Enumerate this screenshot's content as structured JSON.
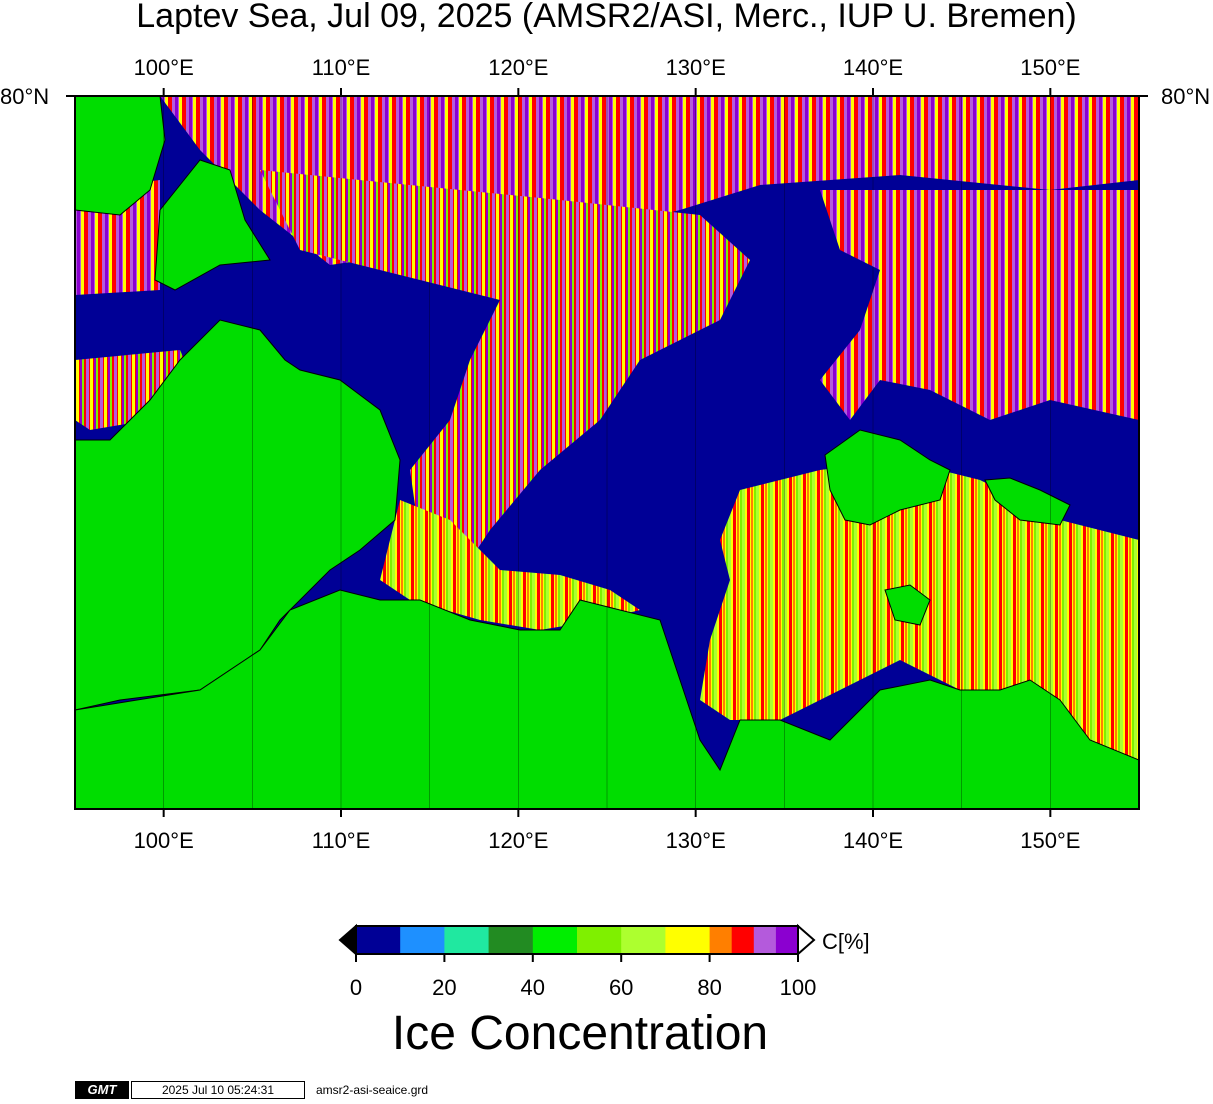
{
  "title": "Laptev Sea, Jul 09, 2025 (AMSR2/ASI, Merc., IUP U. Bremen)",
  "map": {
    "projection": "Mercator",
    "lon_range": [
      95,
      155
    ],
    "lat_top_label": "80°N",
    "lon_ticks": [
      "100°E",
      "110°E",
      "120°E",
      "130°E",
      "140°E",
      "150°E"
    ],
    "lon_tick_values": [
      100,
      110,
      120,
      130,
      140,
      150
    ],
    "land_color": "#00dd00",
    "open_water_color": "#000096"
  },
  "colorbar": {
    "label": "Ice Concentration",
    "unit": "C[%]",
    "tick_labels": [
      "0",
      "20",
      "40",
      "60",
      "80",
      "100"
    ],
    "bins": [
      {
        "from": 0,
        "to": 10,
        "color": "#000096"
      },
      {
        "from": 10,
        "to": 20,
        "color": "#1e90ff"
      },
      {
        "from": 20,
        "to": 30,
        "color": "#20e8a0"
      },
      {
        "from": 30,
        "to": 40,
        "color": "#228b22"
      },
      {
        "from": 40,
        "to": 50,
        "color": "#00ee00"
      },
      {
        "from": 50,
        "to": 60,
        "color": "#7ff000"
      },
      {
        "from": 60,
        "to": 70,
        "color": "#adff2f"
      },
      {
        "from": 70,
        "to": 80,
        "color": "#ffff00"
      },
      {
        "from": 80,
        "to": 85,
        "color": "#ff7f00"
      },
      {
        "from": 85,
        "to": 90,
        "color": "#ff0000"
      },
      {
        "from": 90,
        "to": 95,
        "color": "#b45adc"
      },
      {
        "from": 95,
        "to": 100,
        "color": "#8b00d0"
      }
    ],
    "over_color": "#ffffff",
    "under_color": "#000000"
  },
  "footer": {
    "logo": "GMT",
    "timestamp": "2025 Jul 10 05:24:31",
    "grid_file": "amsr2-asi-seaice.grd"
  }
}
